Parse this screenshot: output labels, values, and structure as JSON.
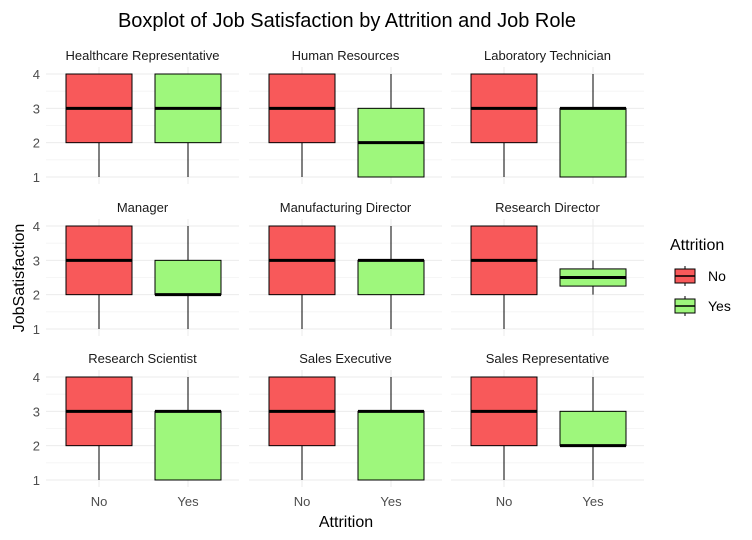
{
  "chart_data": {
    "type": "boxplot",
    "title": "Boxplot of Job Satisfaction by Attrition and Job Role",
    "xlabel": "Attrition",
    "ylabel": "JobSatisfaction",
    "categories": [
      "No",
      "Yes"
    ],
    "yticks": [
      1,
      2,
      3,
      4
    ],
    "ylim": [
      1,
      4
    ],
    "grid": true,
    "legend": {
      "title": "Attrition",
      "placement": "right",
      "entries": [
        {
          "label": "No",
          "color": "#f8595a"
        },
        {
          "label": "Yes",
          "color": "#9ef77c"
        }
      ]
    },
    "facets": [
      {
        "name": "Healthcare Representative",
        "boxes": [
          {
            "category": "No",
            "min": 1,
            "q1": 2,
            "median": 3,
            "q3": 4,
            "max": 4
          },
          {
            "category": "Yes",
            "min": 1,
            "q1": 2,
            "median": 3,
            "q3": 4,
            "max": 4
          }
        ]
      },
      {
        "name": "Human Resources",
        "boxes": [
          {
            "category": "No",
            "min": 1,
            "q1": 2,
            "median": 3,
            "q3": 4,
            "max": 4
          },
          {
            "category": "Yes",
            "min": 1,
            "q1": 1,
            "median": 2,
            "q3": 3,
            "max": 4
          }
        ]
      },
      {
        "name": "Laboratory Technician",
        "boxes": [
          {
            "category": "No",
            "min": 1,
            "q1": 2,
            "median": 3,
            "q3": 4,
            "max": 4
          },
          {
            "category": "Yes",
            "min": 1,
            "q1": 1,
            "median": 3,
            "q3": 3,
            "max": 4
          }
        ]
      },
      {
        "name": "Manager",
        "boxes": [
          {
            "category": "No",
            "min": 1,
            "q1": 2,
            "median": 3,
            "q3": 4,
            "max": 4
          },
          {
            "category": "Yes",
            "min": 1,
            "q1": 2,
            "median": 2,
            "q3": 3,
            "max": 4
          }
        ]
      },
      {
        "name": "Manufacturing Director",
        "boxes": [
          {
            "category": "No",
            "min": 1,
            "q1": 2,
            "median": 3,
            "q3": 4,
            "max": 4
          },
          {
            "category": "Yes",
            "min": 1,
            "q1": 2,
            "median": 3,
            "q3": 3,
            "max": 4
          }
        ]
      },
      {
        "name": "Research Director",
        "boxes": [
          {
            "category": "No",
            "min": 1,
            "q1": 2,
            "median": 3,
            "q3": 4,
            "max": 4
          },
          {
            "category": "Yes",
            "min": 2,
            "q1": 2.25,
            "median": 2.5,
            "q3": 2.75,
            "max": 3
          }
        ]
      },
      {
        "name": "Research Scientist",
        "boxes": [
          {
            "category": "No",
            "min": 1,
            "q1": 2,
            "median": 3,
            "q3": 4,
            "max": 4
          },
          {
            "category": "Yes",
            "min": 1,
            "q1": 1,
            "median": 3,
            "q3": 3,
            "max": 4
          }
        ]
      },
      {
        "name": "Sales Executive",
        "boxes": [
          {
            "category": "No",
            "min": 1,
            "q1": 2,
            "median": 3,
            "q3": 4,
            "max": 4
          },
          {
            "category": "Yes",
            "min": 1,
            "q1": 1,
            "median": 3,
            "q3": 3,
            "max": 4
          }
        ]
      },
      {
        "name": "Sales Representative",
        "boxes": [
          {
            "category": "No",
            "min": 1,
            "q1": 2,
            "median": 3,
            "q3": 4,
            "max": 4
          },
          {
            "category": "Yes",
            "min": 1,
            "q1": 2,
            "median": 2,
            "q3": 3,
            "max": 4
          }
        ]
      }
    ]
  }
}
